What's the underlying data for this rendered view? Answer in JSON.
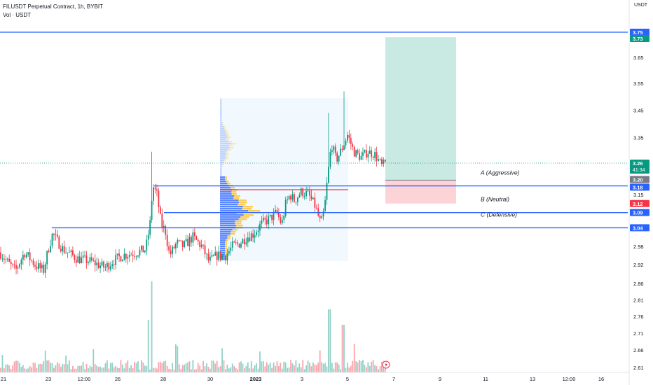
{
  "header": {
    "symbol_line": "FILUSDT Perpetual Contract, 1h, BYBIT",
    "volume_line": "Vol · USDT",
    "currency": "USDT"
  },
  "chart_data": {
    "type": "candlestick",
    "x_ticks": [
      "21",
      "23",
      "12:00",
      "26",
      "28",
      "30",
      "2023",
      "3",
      "5",
      "7",
      "9",
      "11",
      "13",
      "12:00",
      "16"
    ],
    "y_ticks": [
      "3.65",
      "3.55",
      "3.45",
      "3.35",
      "3.15",
      "2.98",
      "2.92",
      "2.86",
      "2.81",
      "2.76",
      "2.71",
      "2.66",
      "2.61"
    ],
    "y_scale": "log",
    "ylim": [
      2.59,
      3.8
    ],
    "price_badges": [
      {
        "label": "3.75",
        "value": 3.75,
        "color": "#2962ff"
      },
      {
        "label": "3.73",
        "value": 3.73,
        "color": "#089981"
      },
      {
        "label": "3.26",
        "sub": "41:34",
        "value": 3.26,
        "color": "#089981"
      },
      {
        "label": "3.20",
        "value": 3.2,
        "color": "#787b86"
      },
      {
        "label": "3.18",
        "value": 3.18,
        "color": "#2962ff"
      },
      {
        "label": "3.12",
        "value": 3.12,
        "color": "#f23645"
      },
      {
        "label": "3.09",
        "value": 3.09,
        "color": "#2962ff"
      },
      {
        "label": "3.04",
        "value": 3.04,
        "color": "#2962ff"
      }
    ],
    "levels": [
      {
        "name": "A (Aggressive)",
        "value": 3.18
      },
      {
        "name": "B (Neutral)",
        "value": 3.09
      },
      {
        "name": "C (Defensive)",
        "value": 3.04
      }
    ],
    "top_line": 3.75,
    "position": {
      "entry": 3.2,
      "target": 3.73,
      "stop": 3.12
    },
    "last_price": 3.26,
    "countdown": "41:34",
    "up_color": "#089981",
    "down_color": "#f23645",
    "line_color": "#2962ff"
  }
}
